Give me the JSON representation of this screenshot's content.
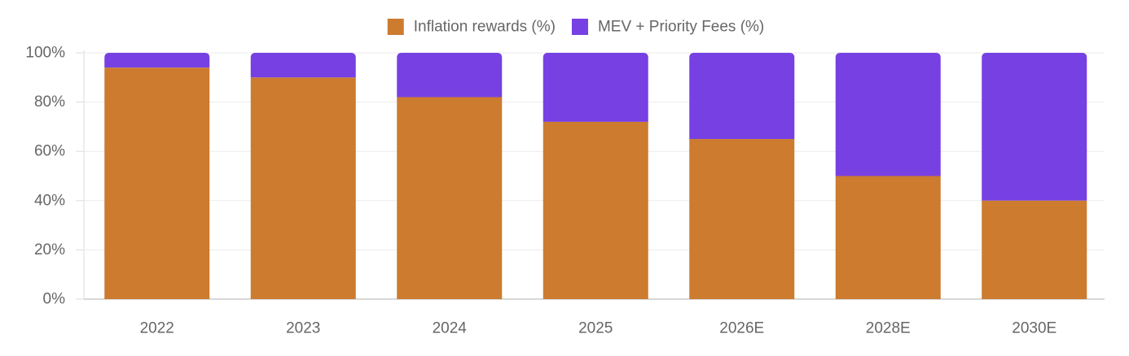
{
  "chart_data": {
    "type": "bar",
    "stacked": true,
    "categories": [
      "2022",
      "2023",
      "2024",
      "2025",
      "2026E",
      "2028E",
      "2030E"
    ],
    "series": [
      {
        "name": "Inflation rewards (%)",
        "color": "#cc7b2f",
        "values": [
          94,
          90,
          82,
          72,
          65,
          50,
          40
        ]
      },
      {
        "name": "MEV + Priority Fees (%)",
        "color": "#7640e3",
        "values": [
          6,
          10,
          18,
          28,
          35,
          50,
          60
        ]
      }
    ],
    "y_ticks": [
      "0%",
      "20%",
      "40%",
      "60%",
      "80%",
      "100%"
    ],
    "ylim": [
      0,
      100
    ],
    "title": "",
    "xlabel": "",
    "ylabel": "",
    "legend_position": "top-center",
    "grid": true
  }
}
